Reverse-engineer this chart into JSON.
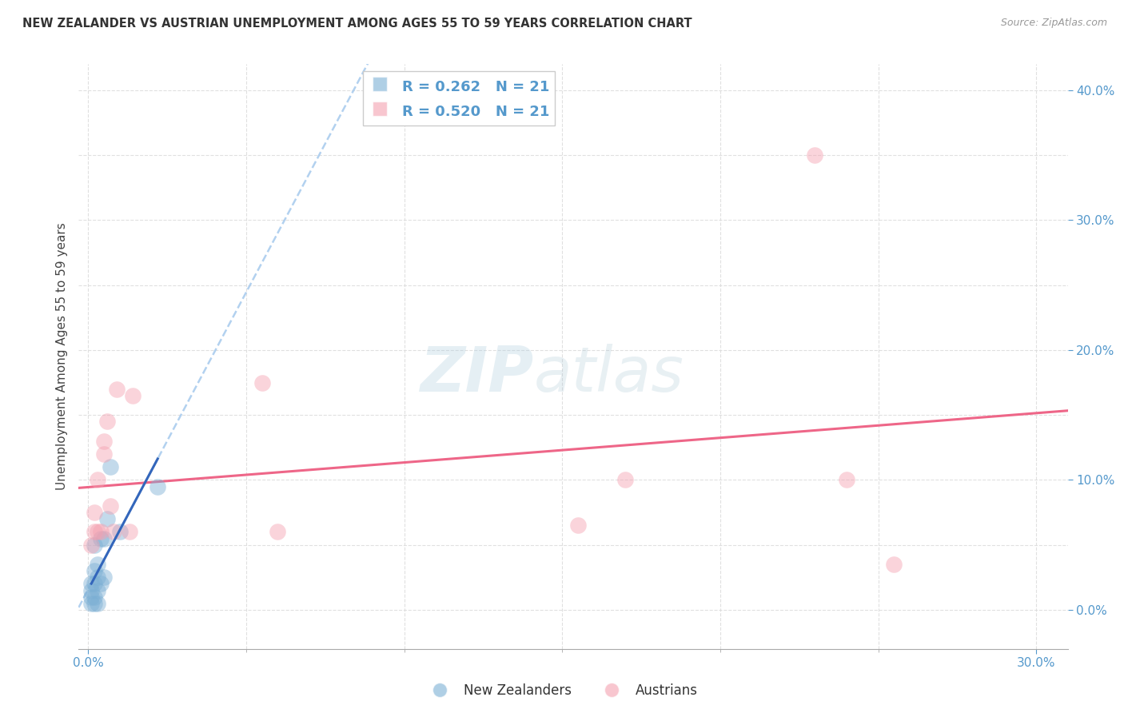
{
  "title": "NEW ZEALANDER VS AUSTRIAN UNEMPLOYMENT AMONG AGES 55 TO 59 YEARS CORRELATION CHART",
  "source": "Source: ZipAtlas.com",
  "ylabel": "Unemployment Among Ages 55 to 59 years",
  "nz_label": "New Zealanders",
  "at_label": "Austrians",
  "nz_r": "0.262",
  "at_r": "0.520",
  "nz_n": "21",
  "at_n": "21",
  "xmin": -0.003,
  "xmax": 0.31,
  "ymin": -0.03,
  "ymax": 0.42,
  "nz_color": "#7BAFD4",
  "at_color": "#F4A0B0",
  "nz_line_color": "#3366BB",
  "at_line_color": "#EE6688",
  "nz_dash_color": "#AACCEE",
  "background_color": "#FFFFFF",
  "grid_color": "#DDDDDD",
  "right_tick_color": "#5599CC",
  "x_tick_color": "#5599CC",
  "nz_x": [
    0.001,
    0.001,
    0.001,
    0.001,
    0.002,
    0.002,
    0.002,
    0.002,
    0.002,
    0.003,
    0.003,
    0.003,
    0.003,
    0.004,
    0.004,
    0.005,
    0.005,
    0.006,
    0.007,
    0.01,
    0.022
  ],
  "nz_y": [
    0.005,
    0.01,
    0.015,
    0.02,
    0.005,
    0.01,
    0.02,
    0.03,
    0.05,
    0.005,
    0.015,
    0.025,
    0.035,
    0.02,
    0.055,
    0.025,
    0.055,
    0.07,
    0.11,
    0.06,
    0.095
  ],
  "at_x": [
    0.001,
    0.002,
    0.002,
    0.003,
    0.003,
    0.004,
    0.005,
    0.005,
    0.006,
    0.007,
    0.008,
    0.009,
    0.013,
    0.014,
    0.055,
    0.06,
    0.155,
    0.17,
    0.23,
    0.24,
    0.255
  ],
  "at_y": [
    0.05,
    0.06,
    0.075,
    0.06,
    0.1,
    0.06,
    0.12,
    0.13,
    0.145,
    0.08,
    0.06,
    0.17,
    0.06,
    0.165,
    0.175,
    0.06,
    0.065,
    0.1,
    0.35,
    0.1,
    0.035
  ],
  "watermark_zip": "ZIP",
  "watermark_atlas": "atlas"
}
